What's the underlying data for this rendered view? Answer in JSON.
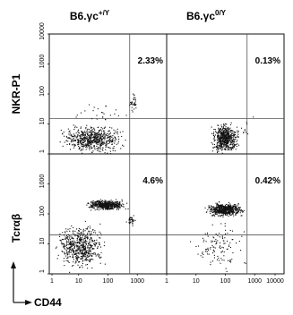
{
  "chart_data": {
    "type": "scatter",
    "columns": [
      {
        "label": "B6.γc",
        "superscript": "+/Y"
      },
      {
        "label": "B6.γc",
        "superscript": "0/Y"
      }
    ],
    "xlabel": "CD44",
    "x_scale": "log",
    "xlim": [
      1,
      10000
    ],
    "x_ticks": [
      "1",
      "10",
      "100",
      "1000"
    ],
    "x_ticks_last_panel": [
      "1",
      "10",
      "100",
      "1000",
      "10000"
    ],
    "y_scale": "log",
    "ylim": [
      1,
      10000
    ],
    "rows": [
      {
        "ylabel": "NKR-P1",
        "y_ticks": [
          "10000",
          "1000",
          "100",
          "10",
          "1"
        ]
      },
      {
        "ylabel": "Tcrαβ",
        "y_ticks": [
          "1000",
          "100",
          "10",
          "1"
        ]
      }
    ],
    "gate": {
      "x": 550,
      "y": [
        15,
        20
      ]
    },
    "panels": [
      {
        "row": 0,
        "col": 0,
        "percent": "2.33%",
        "populations": [
          {
            "x_range": [
              2,
              400
            ],
            "y_range": [
              1,
              10
            ],
            "count": 650
          },
          {
            "x_range": [
              500,
              950
            ],
            "y_range": [
              25,
              120
            ],
            "count": 35
          },
          {
            "x_range": [
              5,
              500
            ],
            "y_range": [
              10,
              60
            ],
            "count": 25
          }
        ]
      },
      {
        "row": 0,
        "col": 1,
        "percent": "0.13%",
        "populations": [
          {
            "x_range": [
              30,
              300
            ],
            "y_range": [
              1,
              12
            ],
            "count": 600
          },
          {
            "x_range": [
              300,
              900
            ],
            "y_range": [
              2,
              25
            ],
            "count": 10
          }
        ]
      },
      {
        "row": 1,
        "col": 0,
        "percent": "4.6%",
        "populations": [
          {
            "x_range": [
              15,
              500
            ],
            "y_range": [
              130,
              320
            ],
            "count": 500
          },
          {
            "x_range": [
              1.5,
              80
            ],
            "y_range": [
              1.2,
              60
            ],
            "count": 600
          },
          {
            "x_range": [
              400,
              900
            ],
            "y_range": [
              40,
              110
            ],
            "count": 40
          }
        ]
      },
      {
        "row": 1,
        "col": 1,
        "percent": "0.42%",
        "populations": [
          {
            "x_range": [
              20,
              500
            ],
            "y_range": [
              80,
              250
            ],
            "count": 600
          },
          {
            "x_range": [
              5,
              600
            ],
            "y_range": [
              1.2,
              60
            ],
            "count": 120
          }
        ]
      }
    ]
  }
}
